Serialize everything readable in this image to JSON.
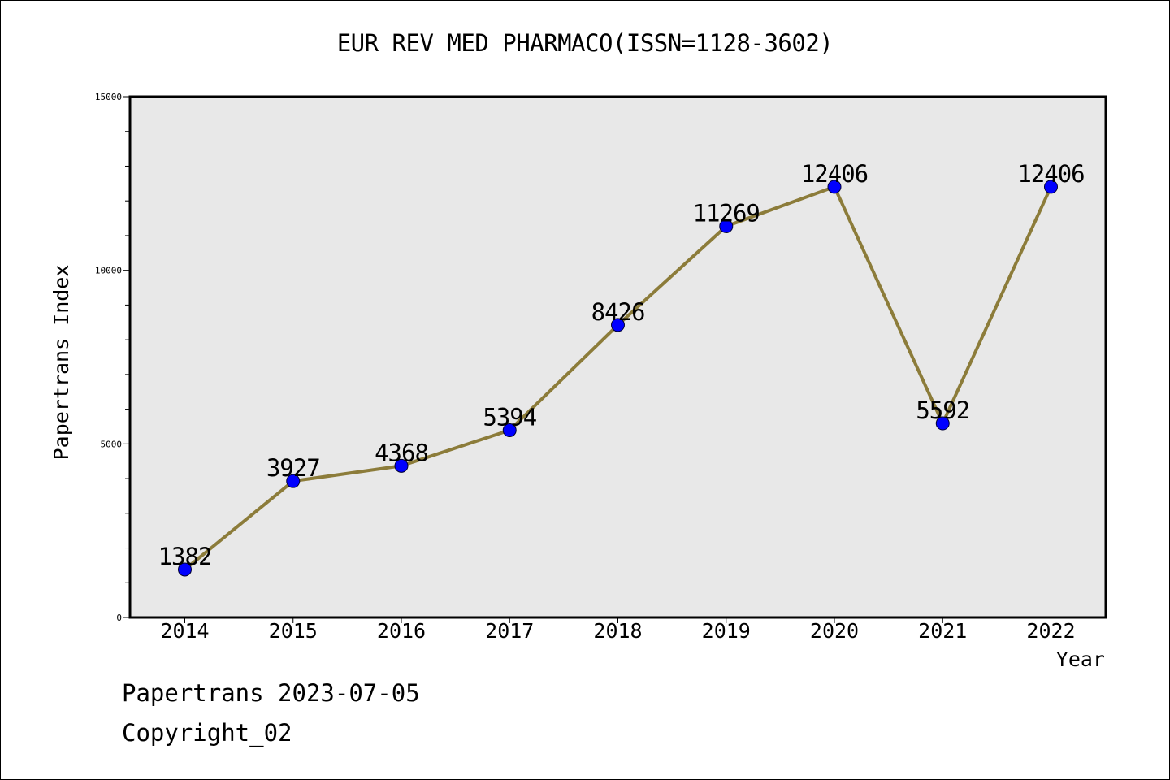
{
  "chart_data": {
    "type": "line",
    "title": "EUR REV MED PHARMACO(ISSN=1128-3602)",
    "xlabel": "Year",
    "ylabel": "Papertrans Index",
    "categories": [
      "2014",
      "2015",
      "2016",
      "2017",
      "2018",
      "2019",
      "2020",
      "2021",
      "2022"
    ],
    "series": [
      {
        "values": [
          1382,
          3927,
          4368,
          5394,
          8426,
          11269,
          12406,
          5592,
          12406
        ]
      }
    ],
    "data_labels": [
      "1382",
      "3927",
      "4368",
      "5394",
      "8426",
      "11269",
      "12406",
      "5592",
      "12406"
    ],
    "yticks": [
      0,
      5000,
      10000,
      15000
    ],
    "ytick_labels": [
      "0",
      "5000",
      "10000",
      "15000"
    ],
    "ylim": [
      0,
      15000
    ],
    "grid": false,
    "colors": {
      "line": "#8c7c3a",
      "marker": "#0000ff",
      "plot_bg": "#e8e8e8"
    }
  },
  "footer": {
    "line1": "Papertrans 2023-07-05",
    "line2": "Copyright_02"
  }
}
